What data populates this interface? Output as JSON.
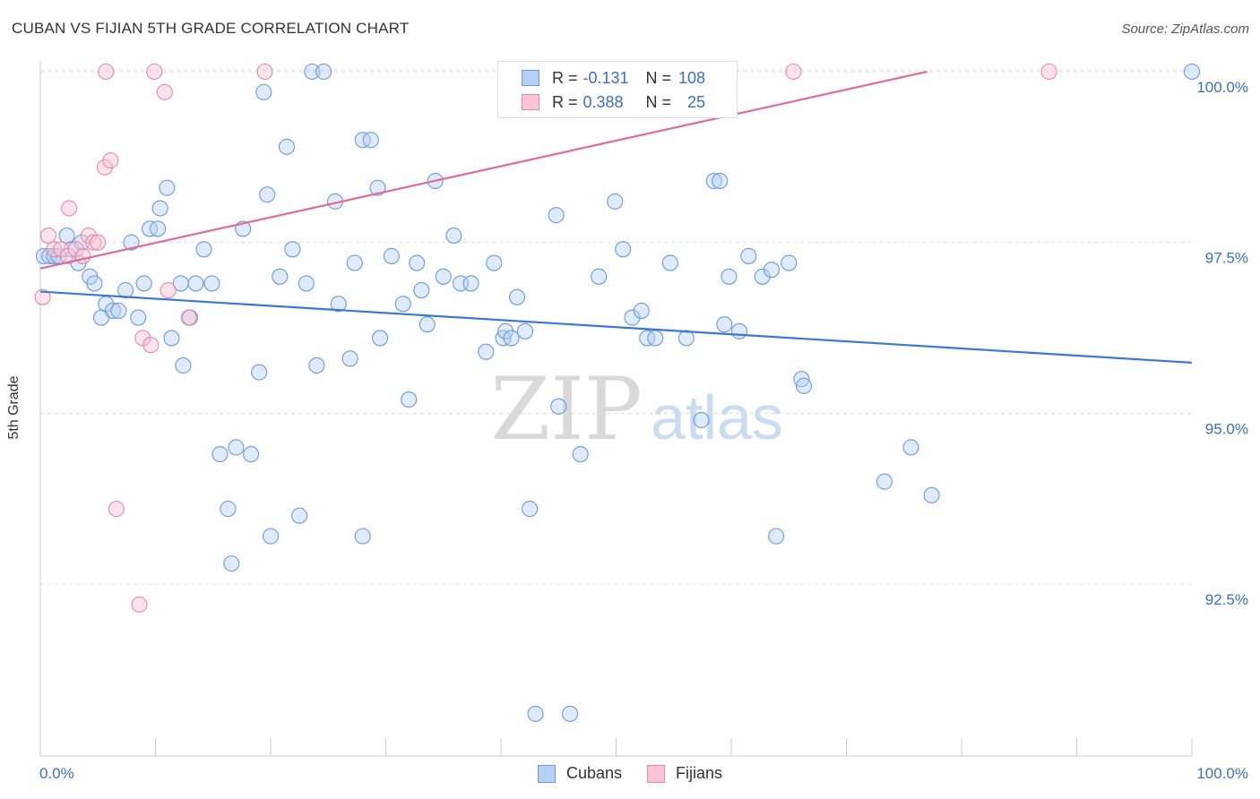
{
  "header": {
    "title": "CUBAN VS FIJIAN 5TH GRADE CORRELATION CHART",
    "source": "Source: ZipAtlas.com"
  },
  "watermark": {
    "zip": "ZIP",
    "atlas": "atlas"
  },
  "legend": {
    "rows": [
      {
        "r_label": "R =",
        "r_value": "-0.131",
        "n_label": "N =",
        "n_value": "108",
        "fill": "#b8d0f3",
        "stroke": "#6a9be0"
      },
      {
        "r_label": "R =",
        "r_value": "0.388",
        "n_label": "N =",
        "n_value": "25",
        "fill": "#fac4d4",
        "stroke": "#e58aa6"
      }
    ]
  },
  "bottom_legend": [
    {
      "label": "Cubans",
      "fill": "#b8d0f3",
      "stroke": "#6a9be0"
    },
    {
      "label": "Fijians",
      "fill": "#fac4d4",
      "stroke": "#e58aa6"
    }
  ],
  "chart_data": {
    "type": "scatter",
    "title": "CUBAN VS FIJIAN 5TH GRADE CORRELATION CHART",
    "xlabel": "",
    "ylabel": "5th Grade",
    "xlim": [
      0,
      100
    ],
    "ylim": [
      90.6,
      100.5
    ],
    "x_tick_labels": [
      "0.0%",
      "100.0%"
    ],
    "y_ticks": [
      100.0,
      97.5,
      95.0,
      92.5
    ],
    "y_tick_labels": [
      "100.0%",
      "97.5%",
      "95.0%",
      "92.5%"
    ],
    "grid": true,
    "colors": {
      "cubans": "#3a78d4",
      "fijians": "#e26b96",
      "tick_label": "#3a6fc4"
    },
    "series": [
      {
        "name": "Cubans",
        "color": "#6a9be0",
        "trend": {
          "x": [
            0,
            100
          ],
          "y": [
            96.78,
            95.74
          ]
        },
        "points": [
          [
            0.3,
            97.3
          ],
          [
            0.8,
            97.3
          ],
          [
            1.2,
            97.3
          ],
          [
            1.6,
            97.3
          ],
          [
            2.3,
            97.6
          ],
          [
            2.7,
            97.4
          ],
          [
            3.3,
            97.2
          ],
          [
            3.6,
            97.5
          ],
          [
            4.3,
            97.0
          ],
          [
            4.7,
            96.9
          ],
          [
            5.3,
            96.4
          ],
          [
            5.7,
            96.6
          ],
          [
            6.3,
            96.5
          ],
          [
            6.8,
            96.5
          ],
          [
            7.4,
            96.8
          ],
          [
            7.9,
            97.5
          ],
          [
            8.5,
            96.4
          ],
          [
            9.0,
            96.9
          ],
          [
            9.5,
            97.7
          ],
          [
            10.2,
            97.7
          ],
          [
            10.4,
            98.0
          ],
          [
            11.0,
            98.3
          ],
          [
            11.4,
            96.1
          ],
          [
            12.2,
            96.9
          ],
          [
            12.4,
            95.7
          ],
          [
            13.0,
            96.4
          ],
          [
            13.5,
            96.9
          ],
          [
            14.2,
            97.4
          ],
          [
            14.9,
            96.9
          ],
          [
            15.6,
            94.4
          ],
          [
            16.3,
            93.6
          ],
          [
            16.6,
            92.8
          ],
          [
            17.0,
            94.5
          ],
          [
            17.6,
            97.7
          ],
          [
            18.3,
            94.4
          ],
          [
            19.0,
            95.6
          ],
          [
            19.4,
            99.7
          ],
          [
            19.7,
            98.2
          ],
          [
            20.0,
            93.2
          ],
          [
            20.8,
            97.0
          ],
          [
            21.4,
            98.9
          ],
          [
            21.9,
            97.4
          ],
          [
            22.5,
            93.5
          ],
          [
            23.1,
            96.9
          ],
          [
            23.6,
            100.0
          ],
          [
            24.0,
            95.7
          ],
          [
            24.6,
            100.0
          ],
          [
            25.6,
            98.1
          ],
          [
            25.9,
            96.6
          ],
          [
            26.9,
            95.8
          ],
          [
            27.3,
            97.2
          ],
          [
            28.0,
            93.2
          ],
          [
            28.0,
            99.0
          ],
          [
            28.7,
            99.0
          ],
          [
            29.3,
            98.3
          ],
          [
            29.5,
            96.1
          ],
          [
            30.5,
            97.3
          ],
          [
            31.5,
            96.6
          ],
          [
            32.0,
            95.2
          ],
          [
            32.7,
            97.2
          ],
          [
            33.1,
            96.8
          ],
          [
            33.6,
            96.3
          ],
          [
            34.3,
            98.4
          ],
          [
            35.0,
            97.0
          ],
          [
            35.9,
            97.6
          ],
          [
            36.5,
            96.9
          ],
          [
            37.4,
            96.9
          ],
          [
            38.7,
            95.9
          ],
          [
            39.4,
            97.2
          ],
          [
            40.2,
            96.1
          ],
          [
            40.4,
            96.2
          ],
          [
            40.9,
            96.1
          ],
          [
            41.4,
            96.7
          ],
          [
            42.1,
            96.2
          ],
          [
            42.5,
            93.6
          ],
          [
            43.0,
            90.6
          ],
          [
            44.8,
            97.9
          ],
          [
            45.0,
            95.1
          ],
          [
            46.0,
            90.6
          ],
          [
            46.9,
            94.4
          ],
          [
            48.5,
            97.0
          ],
          [
            49.9,
            98.1
          ],
          [
            50.6,
            97.4
          ],
          [
            51.4,
            96.4
          ],
          [
            52.2,
            96.5
          ],
          [
            52.7,
            96.1
          ],
          [
            53.4,
            96.1
          ],
          [
            54.7,
            97.2
          ],
          [
            56.1,
            96.1
          ],
          [
            57.4,
            94.9
          ],
          [
            58.5,
            98.4
          ],
          [
            59.0,
            98.4
          ],
          [
            59.4,
            96.3
          ],
          [
            59.8,
            97.0
          ],
          [
            60.7,
            96.2
          ],
          [
            61.5,
            97.3
          ],
          [
            62.7,
            97.0
          ],
          [
            63.5,
            97.1
          ],
          [
            63.9,
            93.2
          ],
          [
            65.0,
            97.2
          ],
          [
            66.1,
            95.5
          ],
          [
            66.3,
            95.4
          ],
          [
            73.3,
            94.0
          ],
          [
            75.6,
            94.5
          ],
          [
            77.4,
            93.8
          ],
          [
            100.0,
            100.0
          ]
        ]
      },
      {
        "name": "Fijians",
        "color": "#e58aa6",
        "trend": {
          "x": [
            0,
            77
          ],
          "y": [
            97.12,
            100.0
          ]
        },
        "points": [
          [
            0.2,
            96.7
          ],
          [
            0.7,
            97.6
          ],
          [
            1.2,
            97.4
          ],
          [
            1.8,
            97.4
          ],
          [
            2.4,
            97.3
          ],
          [
            2.5,
            98.0
          ],
          [
            3.1,
            97.4
          ],
          [
            3.7,
            97.3
          ],
          [
            4.2,
            97.6
          ],
          [
            4.6,
            97.5
          ],
          [
            5.0,
            97.5
          ],
          [
            5.6,
            98.6
          ],
          [
            5.7,
            100.0
          ],
          [
            6.1,
            98.7
          ],
          [
            6.6,
            93.6
          ],
          [
            8.6,
            92.2
          ],
          [
            8.9,
            96.1
          ],
          [
            9.6,
            96.0
          ],
          [
            9.9,
            100.0
          ],
          [
            10.8,
            99.7
          ],
          [
            11.1,
            96.8
          ],
          [
            12.9,
            96.4
          ],
          [
            19.5,
            100.0
          ],
          [
            65.4,
            100.0
          ],
          [
            87.6,
            100.0
          ]
        ]
      }
    ]
  }
}
